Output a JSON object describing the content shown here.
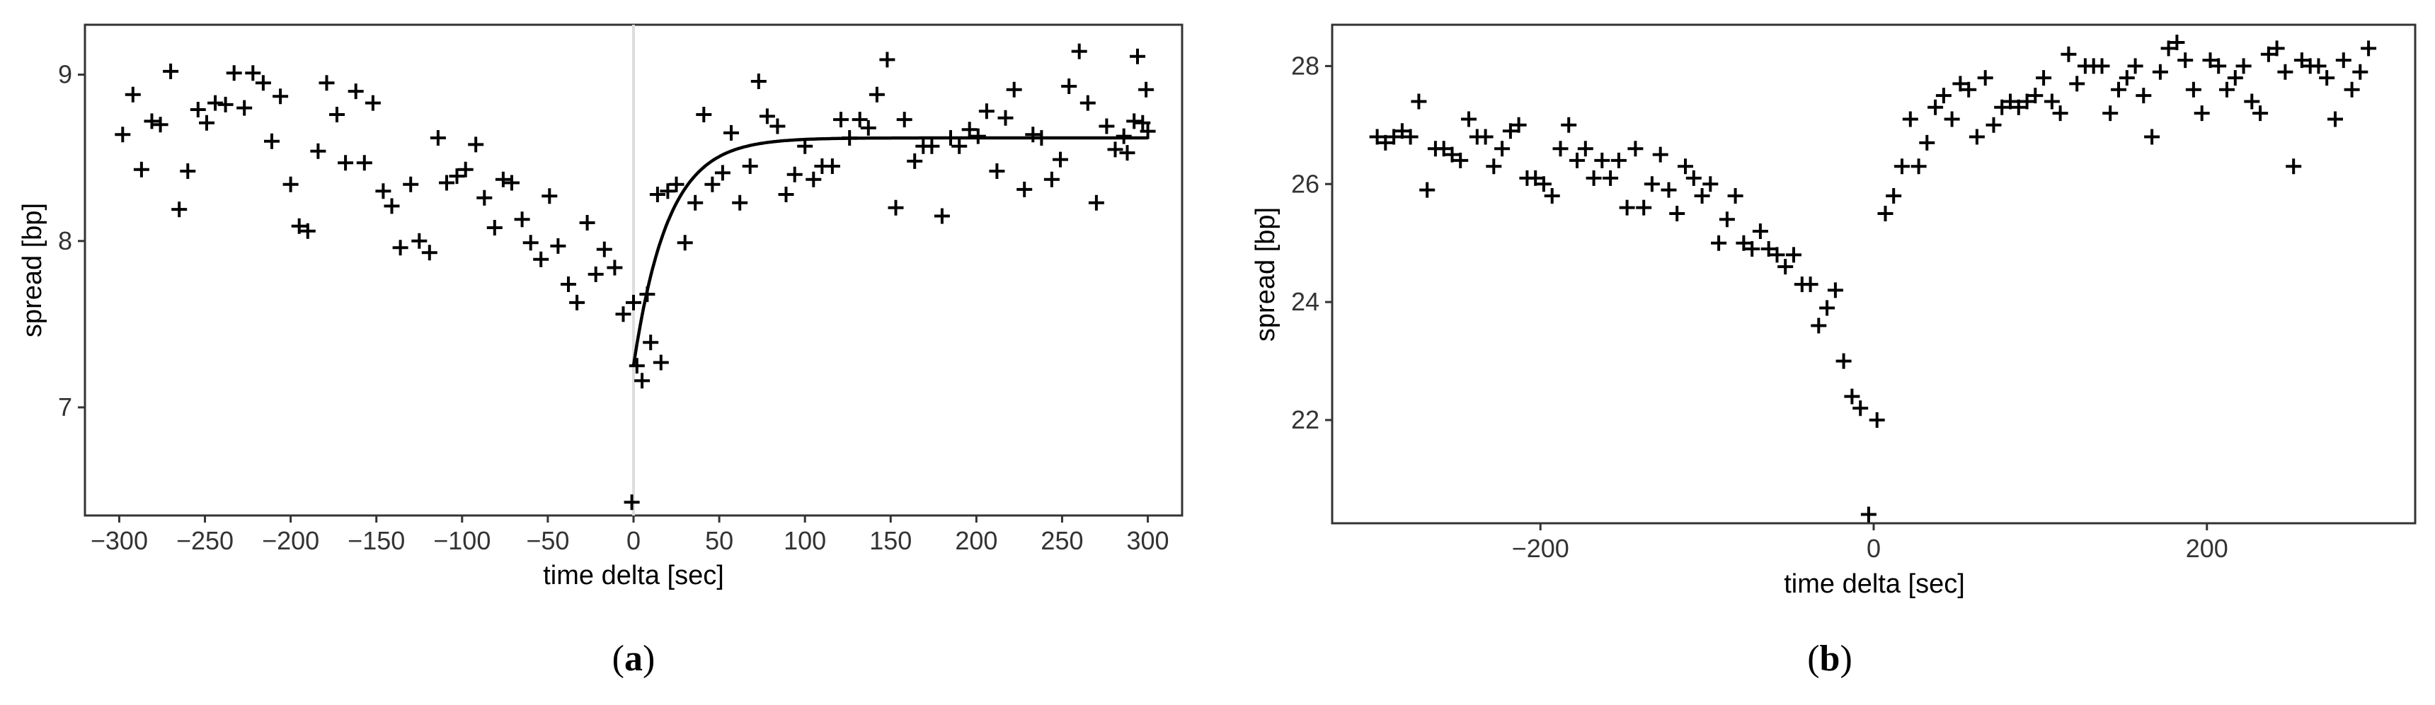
{
  "chart_data": [
    {
      "type": "scatter",
      "panel_label": "a",
      "xlabel": "time delta [sec]",
      "ylabel": "spread [bp]",
      "xlim": [
        -320,
        320
      ],
      "ylim": [
        6.35,
        9.3
      ],
      "xticks": [
        -300,
        -250,
        -200,
        -150,
        -100,
        -50,
        0,
        50,
        100,
        150,
        200,
        250,
        300
      ],
      "xtick_labels": [
        "−300",
        "−250",
        "−200",
        "−150",
        "−100",
        "−50",
        "0",
        "50",
        "100",
        "150",
        "200",
        "250",
        "300"
      ],
      "yticks": [
        7,
        8,
        9
      ],
      "ytick_labels": [
        "7",
        "8",
        "9"
      ],
      "grid": false,
      "marker": "+",
      "vline_x": 0,
      "fit_curve": {
        "type": "exponential",
        "x_start": 0,
        "x_end": 300,
        "y_start": 7.25,
        "y_end": 8.62,
        "tau": 20
      },
      "points": [
        [
          -298,
          8.64
        ],
        [
          -292,
          8.88
        ],
        [
          -287,
          8.43
        ],
        [
          -281,
          8.72
        ],
        [
          -276,
          8.7
        ],
        [
          -270,
          9.02
        ],
        [
          -265,
          8.19
        ],
        [
          -260,
          8.42
        ],
        [
          -254,
          8.79
        ],
        [
          -249,
          8.71
        ],
        [
          -244,
          8.83
        ],
        [
          -238,
          8.82
        ],
        [
          -233,
          9.01
        ],
        [
          -227,
          8.8
        ],
        [
          -222,
          9.01
        ],
        [
          -216,
          8.95
        ],
        [
          -211,
          8.6
        ],
        [
          -206,
          8.87
        ],
        [
          -200,
          8.34
        ],
        [
          -195,
          8.09
        ],
        [
          -190,
          8.06
        ],
        [
          -184,
          8.54
        ],
        [
          -179,
          8.95
        ],
        [
          -173,
          8.76
        ],
        [
          -168,
          8.47
        ],
        [
          -162,
          8.9
        ],
        [
          -157,
          8.47
        ],
        [
          -152,
          8.83
        ],
        [
          -146,
          8.3
        ],
        [
          -141,
          8.21
        ],
        [
          -136,
          7.96
        ],
        [
          -130,
          8.34
        ],
        [
          -125,
          8.0
        ],
        [
          -119,
          7.93
        ],
        [
          -114,
          8.62
        ],
        [
          -109,
          8.35
        ],
        [
          -103,
          8.39
        ],
        [
          -98,
          8.43
        ],
        [
          -92,
          8.58
        ],
        [
          -87,
          8.26
        ],
        [
          -81,
          8.08
        ],
        [
          -76,
          8.37
        ],
        [
          -71,
          8.35
        ],
        [
          -65,
          8.13
        ],
        [
          -60,
          7.99
        ],
        [
          -54,
          7.89
        ],
        [
          -49,
          8.27
        ],
        [
          -44,
          7.97
        ],
        [
          -38,
          7.74
        ],
        [
          -33,
          7.63
        ],
        [
          -27,
          8.11
        ],
        [
          -22,
          7.8
        ],
        [
          -17,
          7.95
        ],
        [
          -11,
          7.84
        ],
        [
          -6,
          7.56
        ],
        [
          0,
          7.63
        ],
        [
          5,
          7.16
        ],
        [
          10,
          7.39
        ],
        [
          16,
          7.27
        ],
        [
          -1,
          6.43
        ],
        [
          2,
          7.25
        ],
        [
          8,
          7.68
        ],
        [
          14,
          8.28
        ],
        [
          20,
          8.3
        ],
        [
          25,
          8.34
        ],
        [
          30,
          7.99
        ],
        [
          36,
          8.23
        ],
        [
          41,
          8.76
        ],
        [
          46,
          8.34
        ],
        [
          52,
          8.41
        ],
        [
          57,
          8.65
        ],
        [
          62,
          8.23
        ],
        [
          68,
          8.45
        ],
        [
          73,
          8.96
        ],
        [
          78,
          8.75
        ],
        [
          84,
          8.69
        ],
        [
          89,
          8.28
        ],
        [
          94,
          8.4
        ],
        [
          100,
          8.57
        ],
        [
          105,
          8.37
        ],
        [
          110,
          8.45
        ],
        [
          116,
          8.45
        ],
        [
          121,
          8.73
        ],
        [
          126,
          8.62
        ],
        [
          132,
          8.73
        ],
        [
          137,
          8.68
        ],
        [
          142,
          8.88
        ],
        [
          148,
          9.09
        ],
        [
          153,
          8.2
        ],
        [
          158,
          8.73
        ],
        [
          164,
          8.48
        ],
        [
          169,
          8.57
        ],
        [
          174,
          8.57
        ],
        [
          180,
          8.15
        ],
        [
          185,
          8.62
        ],
        [
          190,
          8.57
        ],
        [
          196,
          8.67
        ],
        [
          201,
          8.63
        ],
        [
          206,
          8.78
        ],
        [
          212,
          8.42
        ],
        [
          217,
          8.74
        ],
        [
          222,
          8.91
        ],
        [
          228,
          8.31
        ],
        [
          233,
          8.64
        ],
        [
          238,
          8.62
        ],
        [
          244,
          8.37
        ],
        [
          249,
          8.49
        ],
        [
          254,
          8.93
        ],
        [
          260,
          9.14
        ],
        [
          265,
          8.83
        ],
        [
          270,
          8.23
        ],
        [
          276,
          8.69
        ],
        [
          281,
          8.55
        ],
        [
          286,
          8.63
        ],
        [
          292,
          8.72
        ],
        [
          297,
          8.71
        ],
        [
          300,
          8.66
        ],
        [
          288,
          8.53
        ],
        [
          294,
          9.11
        ],
        [
          299,
          8.91
        ]
      ]
    },
    {
      "type": "scatter",
      "panel_label": "b",
      "xlabel": "time delta [sec]",
      "ylabel": "spread [bp]",
      "xlim": [
        -325,
        325
      ],
      "ylim": [
        20.25,
        28.7
      ],
      "xticks": [
        -200,
        0,
        200
      ],
      "xtick_labels": [
        "−200",
        "0",
        "200"
      ],
      "yticks": [
        22,
        24,
        26,
        28
      ],
      "ytick_labels": [
        "22",
        "24",
        "26",
        "28"
      ],
      "grid": false,
      "marker": "+",
      "points": [
        [
          -298,
          26.8
        ],
        [
          -293,
          26.7
        ],
        [
          -288,
          26.8
        ],
        [
          -283,
          26.9
        ],
        [
          -278,
          26.8
        ],
        [
          -273,
          27.4
        ],
        [
          -268,
          25.9
        ],
        [
          -263,
          26.6
        ],
        [
          -258,
          26.6
        ],
        [
          -253,
          26.5
        ],
        [
          -248,
          26.4
        ],
        [
          -243,
          27.1
        ],
        [
          -238,
          26.8
        ],
        [
          -233,
          26.8
        ],
        [
          -228,
          26.3
        ],
        [
          -223,
          26.6
        ],
        [
          -218,
          26.9
        ],
        [
          -213,
          27.0
        ],
        [
          -208,
          26.1
        ],
        [
          -203,
          26.1
        ],
        [
          -198,
          26.0
        ],
        [
          -193,
          25.8
        ],
        [
          -188,
          26.6
        ],
        [
          -183,
          27.0
        ],
        [
          -178,
          26.4
        ],
        [
          -173,
          26.6
        ],
        [
          -168,
          26.1
        ],
        [
          -163,
          26.4
        ],
        [
          -158,
          26.1
        ],
        [
          -153,
          26.4
        ],
        [
          -148,
          25.6
        ],
        [
          -143,
          26.6
        ],
        [
          -138,
          25.6
        ],
        [
          -133,
          26.0
        ],
        [
          -128,
          26.5
        ],
        [
          -123,
          25.9
        ],
        [
          -118,
          25.5
        ],
        [
          -113,
          26.3
        ],
        [
          -108,
          26.1
        ],
        [
          -103,
          25.8
        ],
        [
          -98,
          26.0
        ],
        [
          -93,
          25.0
        ],
        [
          -88,
          25.4
        ],
        [
          -83,
          25.8
        ],
        [
          -78,
          25.0
        ],
        [
          -73,
          24.9
        ],
        [
          -68,
          25.2
        ],
        [
          -63,
          24.9
        ],
        [
          -58,
          24.8
        ],
        [
          -53,
          24.6
        ],
        [
          -48,
          24.8
        ],
        [
          -43,
          24.3
        ],
        [
          -38,
          24.3
        ],
        [
          -33,
          23.6
        ],
        [
          -28,
          23.9
        ],
        [
          -23,
          24.2
        ],
        [
          -18,
          23.0
        ],
        [
          -13,
          22.4
        ],
        [
          -8,
          22.2
        ],
        [
          -3,
          20.4
        ],
        [
          2,
          22.0
        ],
        [
          7,
          25.5
        ],
        [
          12,
          25.8
        ],
        [
          17,
          26.3
        ],
        [
          22,
          27.1
        ],
        [
          27,
          26.3
        ],
        [
          32,
          26.7
        ],
        [
          37,
          27.3
        ],
        [
          42,
          27.5
        ],
        [
          47,
          27.1
        ],
        [
          52,
          27.7
        ],
        [
          57,
          27.6
        ],
        [
          62,
          26.8
        ],
        [
          67,
          27.8
        ],
        [
          72,
          27.0
        ],
        [
          77,
          27.3
        ],
        [
          82,
          27.4
        ],
        [
          87,
          27.3
        ],
        [
          92,
          27.4
        ],
        [
          97,
          27.5
        ],
        [
          102,
          27.8
        ],
        [
          107,
          27.4
        ],
        [
          112,
          27.2
        ],
        [
          117,
          28.2
        ],
        [
          122,
          27.7
        ],
        [
          127,
          28.0
        ],
        [
          132,
          28.0
        ],
        [
          137,
          28.0
        ],
        [
          142,
          27.2
        ],
        [
          147,
          27.6
        ],
        [
          152,
          27.8
        ],
        [
          157,
          28.0
        ],
        [
          162,
          27.5
        ],
        [
          167,
          26.8
        ],
        [
          172,
          27.9
        ],
        [
          177,
          28.3
        ],
        [
          182,
          28.4
        ],
        [
          187,
          28.1
        ],
        [
          192,
          27.6
        ],
        [
          197,
          27.2
        ],
        [
          202,
          28.1
        ],
        [
          207,
          28.0
        ],
        [
          212,
          27.6
        ],
        [
          217,
          27.8
        ],
        [
          222,
          28.0
        ],
        [
          227,
          27.4
        ],
        [
          232,
          27.2
        ],
        [
          237,
          28.2
        ],
        [
          242,
          28.3
        ],
        [
          247,
          27.9
        ],
        [
          252,
          26.3
        ],
        [
          257,
          28.1
        ],
        [
          262,
          28.0
        ],
        [
          267,
          28.0
        ],
        [
          272,
          27.8
        ],
        [
          277,
          27.1
        ],
        [
          282,
          28.1
        ],
        [
          287,
          27.6
        ],
        [
          292,
          27.9
        ],
        [
          297,
          28.3
        ]
      ]
    }
  ]
}
